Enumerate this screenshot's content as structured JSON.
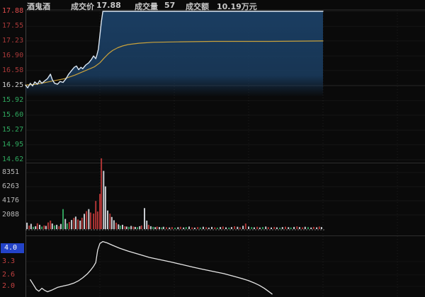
{
  "header": {
    "stock_name": "酒鬼酒",
    "price_label": "成交价",
    "price_value": "17.88",
    "volume_label": "成交量",
    "volume_value": "57",
    "turnover_label": "成交额",
    "turnover_value": "10.19万元"
  },
  "colors": {
    "background": "#0a0a0a",
    "price_line": "#dbe7f3",
    "avg_line": "#c9a13b",
    "fill_navy": "#1b4066",
    "bar_red": "#b03535",
    "bar_green": "#2f9e5a",
    "bar_white": "#c9ccd1",
    "indicator_line": "#e6e6e6",
    "highlight_bg": "#2343c8",
    "up_text": "#e34d4d",
    "down_text": "#2fa95f",
    "grid": "#ffffff",
    "border": "#2e2e2e",
    "baseline": "#909090"
  },
  "chart_data": [
    {
      "type": "line",
      "title": "intraday price pane",
      "ylim": [
        14.62,
        17.88
      ],
      "grid": true,
      "yticks": [
        {
          "label": "17.88",
          "v": 17.88,
          "color": "#e34d4d"
        },
        {
          "label": "17.55",
          "v": 17.55,
          "color": "#a93939"
        },
        {
          "label": "17.23",
          "v": 17.23,
          "color": "#a93939"
        },
        {
          "label": "16.90",
          "v": 16.9,
          "color": "#a93939"
        },
        {
          "label": "16.58",
          "v": 16.58,
          "color": "#a93939"
        },
        {
          "label": "16.25",
          "v": 16.25,
          "color": "#cfcfcf"
        },
        {
          "label": "15.92",
          "v": 15.92,
          "color": "#2fa95f"
        },
        {
          "label": "15.60",
          "v": 15.6,
          "color": "#2fa95f"
        },
        {
          "label": "15.27",
          "v": 15.27,
          "color": "#2fa95f"
        },
        {
          "label": "14.95",
          "v": 14.95,
          "color": "#2fa95f"
        },
        {
          "label": "14.62",
          "v": 14.62,
          "color": "#2fa95f"
        }
      ],
      "series": [
        {
          "name": "price",
          "area_fill": true,
          "points": [
            [
              0,
              16.26
            ],
            [
              0.006,
              16.2
            ],
            [
              0.013,
              16.3
            ],
            [
              0.019,
              16.24
            ],
            [
              0.025,
              16.33
            ],
            [
              0.032,
              16.28
            ],
            [
              0.038,
              16.36
            ],
            [
              0.044,
              16.3
            ],
            [
              0.051,
              16.35
            ],
            [
              0.059,
              16.4
            ],
            [
              0.067,
              16.5
            ],
            [
              0.072,
              16.38
            ],
            [
              0.078,
              16.3
            ],
            [
              0.086,
              16.28
            ],
            [
              0.093,
              16.34
            ],
            [
              0.101,
              16.32
            ],
            [
              0.109,
              16.4
            ],
            [
              0.116,
              16.5
            ],
            [
              0.124,
              16.58
            ],
            [
              0.131,
              16.65
            ],
            [
              0.137,
              16.68
            ],
            [
              0.143,
              16.6
            ],
            [
              0.149,
              16.65
            ],
            [
              0.154,
              16.62
            ],
            [
              0.162,
              16.7
            ],
            [
              0.17,
              16.75
            ],
            [
              0.177,
              16.82
            ],
            [
              0.183,
              16.9
            ],
            [
              0.189,
              16.84
            ],
            [
              0.192,
              16.92
            ],
            [
              0.196,
              17.05
            ],
            [
              0.2,
              17.35
            ],
            [
              0.204,
              17.65
            ],
            [
              0.208,
              17.88
            ],
            [
              0.8,
              17.88
            ]
          ]
        },
        {
          "name": "avg_price",
          "points": [
            [
              0,
              16.26
            ],
            [
              0.029,
              16.28
            ],
            [
              0.067,
              16.34
            ],
            [
              0.105,
              16.4
            ],
            [
              0.133,
              16.48
            ],
            [
              0.162,
              16.58
            ],
            [
              0.185,
              16.66
            ],
            [
              0.2,
              16.75
            ],
            [
              0.211,
              16.85
            ],
            [
              0.223,
              16.95
            ],
            [
              0.234,
              17.02
            ],
            [
              0.248,
              17.08
            ],
            [
              0.261,
              17.12
            ],
            [
              0.276,
              17.15
            ],
            [
              0.305,
              17.18
            ],
            [
              0.343,
              17.2
            ],
            [
              0.41,
              17.21
            ],
            [
              0.505,
              17.22
            ],
            [
              0.657,
              17.22
            ],
            [
              0.8,
              17.23
            ]
          ]
        }
      ]
    },
    {
      "type": "bar",
      "title": "volume pane",
      "ylim": [
        0,
        10450
      ],
      "yticks": [
        {
          "label": "8351",
          "v": 8351,
          "color": "#b8b8b8"
        },
        {
          "label": "6263",
          "v": 6263,
          "color": "#b8b8b8"
        },
        {
          "label": "4176",
          "v": 4176,
          "color": "#b8b8b8"
        },
        {
          "label": "2088",
          "v": 2088,
          "color": "#b8b8b8"
        }
      ],
      "bars": [
        [
          0.004,
          950,
          "w"
        ],
        [
          0.01,
          520,
          "r"
        ],
        [
          0.015,
          780,
          "w"
        ],
        [
          0.021,
          340,
          "g"
        ],
        [
          0.027,
          430,
          "w"
        ],
        [
          0.032,
          860,
          "r"
        ],
        [
          0.038,
          640,
          "w"
        ],
        [
          0.044,
          380,
          "g"
        ],
        [
          0.05,
          540,
          "r"
        ],
        [
          0.055,
          470,
          "w"
        ],
        [
          0.061,
          980,
          "r"
        ],
        [
          0.067,
          1250,
          "r"
        ],
        [
          0.072,
          820,
          "w"
        ],
        [
          0.078,
          540,
          "g"
        ],
        [
          0.084,
          640,
          "w"
        ],
        [
          0.09,
          440,
          "r"
        ],
        [
          0.095,
          760,
          "w"
        ],
        [
          0.101,
          2950,
          "g"
        ],
        [
          0.107,
          1500,
          "w"
        ],
        [
          0.112,
          830,
          "g"
        ],
        [
          0.118,
          1050,
          "r"
        ],
        [
          0.124,
          1350,
          "w"
        ],
        [
          0.13,
          1650,
          "r"
        ],
        [
          0.135,
          1850,
          "w"
        ],
        [
          0.141,
          1420,
          "r"
        ],
        [
          0.147,
          1250,
          "w"
        ],
        [
          0.152,
          1680,
          "r"
        ],
        [
          0.158,
          2250,
          "w"
        ],
        [
          0.164,
          2650,
          "r"
        ],
        [
          0.17,
          2950,
          "w"
        ],
        [
          0.175,
          2450,
          "r"
        ],
        [
          0.183,
          2300,
          "r"
        ],
        [
          0.189,
          4150,
          "r"
        ],
        [
          0.194,
          2600,
          "r"
        ],
        [
          0.2,
          5200,
          "r"
        ],
        [
          0.204,
          10450,
          "r"
        ],
        [
          0.21,
          8600,
          "w"
        ],
        [
          0.215,
          6300,
          "w"
        ],
        [
          0.221,
          2750,
          "w"
        ],
        [
          0.227,
          2300,
          "r"
        ],
        [
          0.232,
          1800,
          "w"
        ],
        [
          0.238,
          1300,
          "w"
        ],
        [
          0.244,
          950,
          "r"
        ],
        [
          0.25,
          700,
          "w"
        ],
        [
          0.255,
          520,
          "g"
        ],
        [
          0.261,
          640,
          "w"
        ],
        [
          0.267,
          430,
          "r"
        ],
        [
          0.272,
          380,
          "w"
        ],
        [
          0.278,
          330,
          "g"
        ],
        [
          0.284,
          470,
          "w"
        ],
        [
          0.29,
          380,
          "r"
        ],
        [
          0.295,
          320,
          "w"
        ],
        [
          0.301,
          280,
          "g"
        ],
        [
          0.307,
          430,
          "w"
        ],
        [
          0.312,
          540,
          "r"
        ],
        [
          0.32,
          3100,
          "w"
        ],
        [
          0.326,
          1250,
          "w"
        ],
        [
          0.331,
          640,
          "r"
        ],
        [
          0.337,
          430,
          "w"
        ],
        [
          0.343,
          330,
          "g"
        ],
        [
          0.349,
          280,
          "w"
        ],
        [
          0.354,
          380,
          "r"
        ],
        [
          0.36,
          300,
          "w"
        ],
        [
          0.366,
          250,
          "g"
        ],
        [
          0.371,
          340,
          "w"
        ],
        [
          0.379,
          280,
          "r"
        ],
        [
          0.387,
          240,
          "w"
        ],
        [
          0.394,
          300,
          "r"
        ],
        [
          0.402,
          220,
          "g"
        ],
        [
          0.41,
          280,
          "w"
        ],
        [
          0.417,
          340,
          "r"
        ],
        [
          0.425,
          240,
          "w"
        ],
        [
          0.432,
          300,
          "g"
        ],
        [
          0.44,
          380,
          "w"
        ],
        [
          0.448,
          260,
          "r"
        ],
        [
          0.455,
          220,
          "w"
        ],
        [
          0.463,
          300,
          "r"
        ],
        [
          0.47,
          240,
          "g"
        ],
        [
          0.478,
          340,
          "w"
        ],
        [
          0.486,
          280,
          "r"
        ],
        [
          0.493,
          220,
          "w"
        ],
        [
          0.501,
          320,
          "w"
        ],
        [
          0.509,
          260,
          "r"
        ],
        [
          0.516,
          220,
          "g"
        ],
        [
          0.524,
          300,
          "w"
        ],
        [
          0.531,
          380,
          "r"
        ],
        [
          0.539,
          260,
          "w"
        ],
        [
          0.547,
          220,
          "g"
        ],
        [
          0.554,
          300,
          "w"
        ],
        [
          0.562,
          420,
          "r"
        ],
        [
          0.57,
          340,
          "w"
        ],
        [
          0.577,
          260,
          "r"
        ],
        [
          0.585,
          480,
          "w"
        ],
        [
          0.592,
          820,
          "r"
        ],
        [
          0.6,
          380,
          "w"
        ],
        [
          0.608,
          300,
          "g"
        ],
        [
          0.615,
          260,
          "w"
        ],
        [
          0.623,
          340,
          "r"
        ],
        [
          0.63,
          240,
          "w"
        ],
        [
          0.638,
          300,
          "g"
        ],
        [
          0.646,
          380,
          "w"
        ],
        [
          0.653,
          280,
          "r"
        ],
        [
          0.661,
          240,
          "w"
        ],
        [
          0.669,
          320,
          "r"
        ],
        [
          0.676,
          260,
          "w"
        ],
        [
          0.684,
          220,
          "g"
        ],
        [
          0.691,
          300,
          "w"
        ],
        [
          0.699,
          360,
          "r"
        ],
        [
          0.707,
          280,
          "w"
        ],
        [
          0.714,
          240,
          "g"
        ],
        [
          0.722,
          320,
          "w"
        ],
        [
          0.73,
          400,
          "r"
        ],
        [
          0.737,
          300,
          "w"
        ],
        [
          0.745,
          260,
          "r"
        ],
        [
          0.752,
          340,
          "w"
        ],
        [
          0.76,
          280,
          "g"
        ],
        [
          0.768,
          240,
          "w"
        ],
        [
          0.775,
          320,
          "r"
        ],
        [
          0.783,
          260,
          "w"
        ],
        [
          0.79,
          380,
          "r"
        ],
        [
          0.796,
          300,
          "w"
        ]
      ]
    },
    {
      "type": "line",
      "title": "indicator pane",
      "ylim": [
        1.4,
        4.6
      ],
      "yticks": [
        {
          "label": "4.0",
          "v": 4.0,
          "color": "#ffffff",
          "highlight": true
        },
        {
          "label": "3.3",
          "v": 3.3,
          "color": "#c24040"
        },
        {
          "label": "2.6",
          "v": 2.6,
          "color": "#c24040"
        },
        {
          "label": "2.0",
          "v": 2.0,
          "color": "#c24040"
        }
      ],
      "series": [
        {
          "name": "indicator",
          "points": [
            [
              0.013,
              2.35
            ],
            [
              0.021,
              2.1
            ],
            [
              0.029,
              1.85
            ],
            [
              0.036,
              1.75
            ],
            [
              0.044,
              1.9
            ],
            [
              0.051,
              1.8
            ],
            [
              0.059,
              1.72
            ],
            [
              0.07,
              1.8
            ],
            [
              0.086,
              1.95
            ],
            [
              0.101,
              2.02
            ],
            [
              0.116,
              2.08
            ],
            [
              0.131,
              2.18
            ],
            [
              0.143,
              2.3
            ],
            [
              0.154,
              2.45
            ],
            [
              0.166,
              2.65
            ],
            [
              0.175,
              2.85
            ],
            [
              0.183,
              3.05
            ],
            [
              0.189,
              3.25
            ],
            [
              0.194,
              3.9
            ],
            [
              0.2,
              4.25
            ],
            [
              0.208,
              4.35
            ],
            [
              0.219,
              4.28
            ],
            [
              0.234,
              4.15
            ],
            [
              0.253,
              4.0
            ],
            [
              0.276,
              3.85
            ],
            [
              0.305,
              3.68
            ],
            [
              0.333,
              3.52
            ],
            [
              0.362,
              3.4
            ],
            [
              0.39,
              3.28
            ],
            [
              0.419,
              3.15
            ],
            [
              0.448,
              3.02
            ],
            [
              0.476,
              2.9
            ],
            [
              0.505,
              2.78
            ],
            [
              0.533,
              2.67
            ],
            [
              0.562,
              2.52
            ],
            [
              0.581,
              2.42
            ],
            [
              0.6,
              2.3
            ],
            [
              0.615,
              2.18
            ],
            [
              0.629,
              2.05
            ],
            [
              0.642,
              1.9
            ],
            [
              0.653,
              1.75
            ],
            [
              0.663,
              1.6
            ]
          ]
        }
      ]
    }
  ]
}
